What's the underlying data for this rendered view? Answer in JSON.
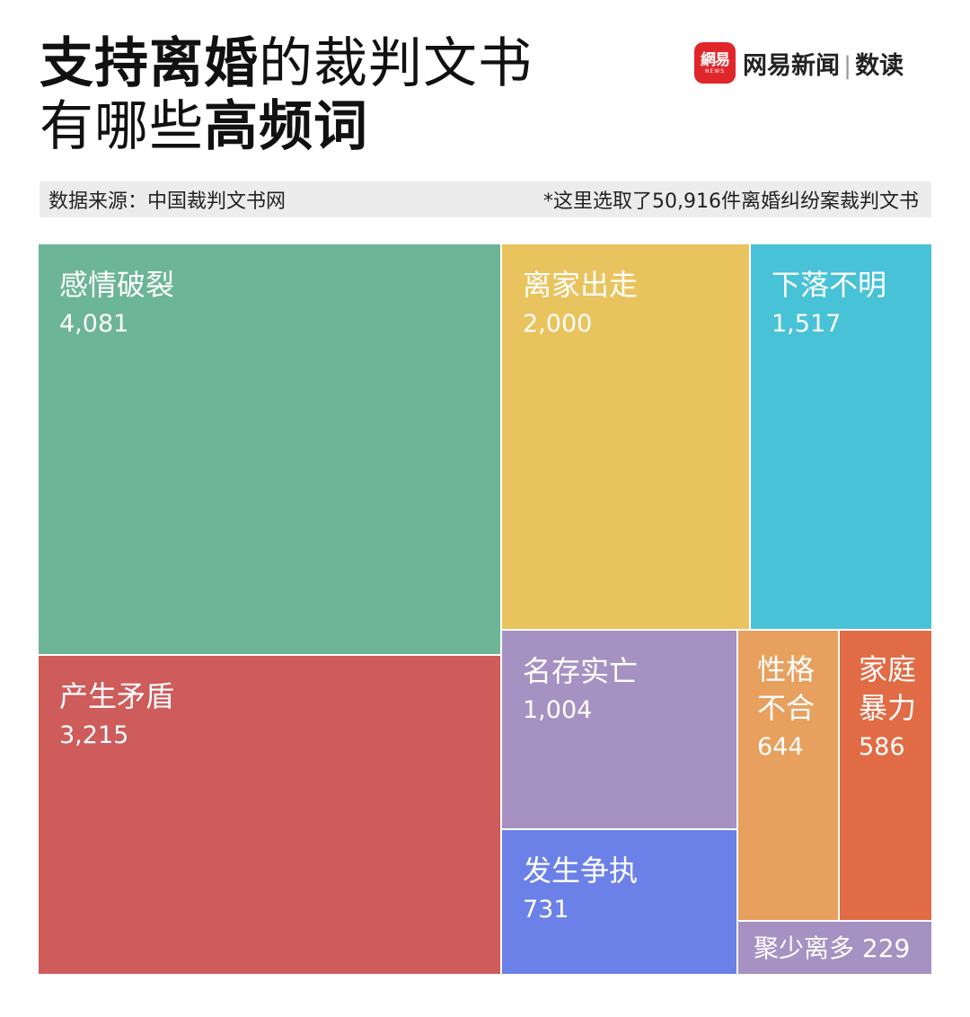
{
  "header": {
    "title_line1_bold": "支持离婚",
    "title_line1_light": "的裁判文书",
    "title_line2_light": "有哪些",
    "title_line2_bold": "高频词"
  },
  "logo": {
    "mark_text": "網易",
    "mark_sub": "NEWS",
    "brand": "网易新闻",
    "separator": "|",
    "section": "数读"
  },
  "source": {
    "left": "数据来源：中国裁判文书网",
    "right": "*这里选取了50,916件离婚纠纷案裁判文书"
  },
  "chart_data": {
    "type": "treemap",
    "items": [
      {
        "label": "感情破裂",
        "value": 4081,
        "value_text": "4,081",
        "color": "#6cb596"
      },
      {
        "label": "产生矛盾",
        "value": 3215,
        "value_text": "3,215",
        "color": "#cd5c5b"
      },
      {
        "label": "离家出走",
        "value": 2000,
        "value_text": "2,000",
        "color": "#e9c35d"
      },
      {
        "label": "下落不明",
        "value": 1517,
        "value_text": "1,517",
        "color": "#48c2d6"
      },
      {
        "label": "名存实亡",
        "value": 1004,
        "value_text": "1,004",
        "color": "#a592c2"
      },
      {
        "label": "发生争执",
        "value": 731,
        "value_text": "731",
        "color": "#6b81e8"
      },
      {
        "label": "性格不合",
        "value": 644,
        "value_text": "644",
        "color": "#e8a05f"
      },
      {
        "label": "家庭暴力",
        "value": 586,
        "value_text": "586",
        "color": "#e16b45"
      },
      {
        "label": "聚少离多",
        "value": 229,
        "value_text": "229",
        "color": "#a592c2"
      }
    ]
  }
}
